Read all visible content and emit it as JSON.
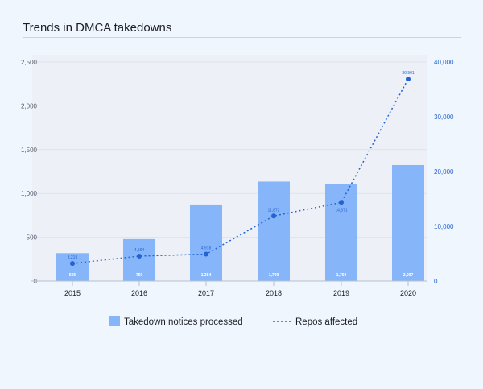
{
  "chart_data": {
    "type": "bar",
    "title": "Trends in DMCA takedowns",
    "categories": [
      "2015",
      "2016",
      "2017",
      "2018",
      "2019",
      "2020"
    ],
    "series": [
      {
        "name": "Takedown notices processed",
        "type": "bar",
        "values": [
          505,
          759,
          1384,
          1799,
          1760,
          2097
        ],
        "labels": [
          "505",
          "759",
          "1,384",
          "1,799",
          "1,760",
          "2,097"
        ],
        "color": "#86b6f9"
      },
      {
        "name": "Repos affected",
        "type": "line",
        "axis": "right",
        "values": [
          3219,
          4564,
          4918,
          11872,
          14371,
          36901
        ],
        "labels": [
          "3,219",
          "4,564",
          "4,918",
          "11,872",
          "14,371",
          "36,901"
        ],
        "color": "#2463d1"
      }
    ],
    "left_axis": {
      "ylim": [
        0,
        2500
      ],
      "ticks": [
        "0",
        "500",
        "1,000",
        "1,500",
        "2,000",
        "2,500"
      ]
    },
    "right_axis": {
      "ylim": [
        0,
        40000
      ],
      "ticks": [
        "0",
        "10,000",
        "20,000",
        "30,000",
        "40,000"
      ]
    },
    "grid": true,
    "legend": "bottom"
  }
}
